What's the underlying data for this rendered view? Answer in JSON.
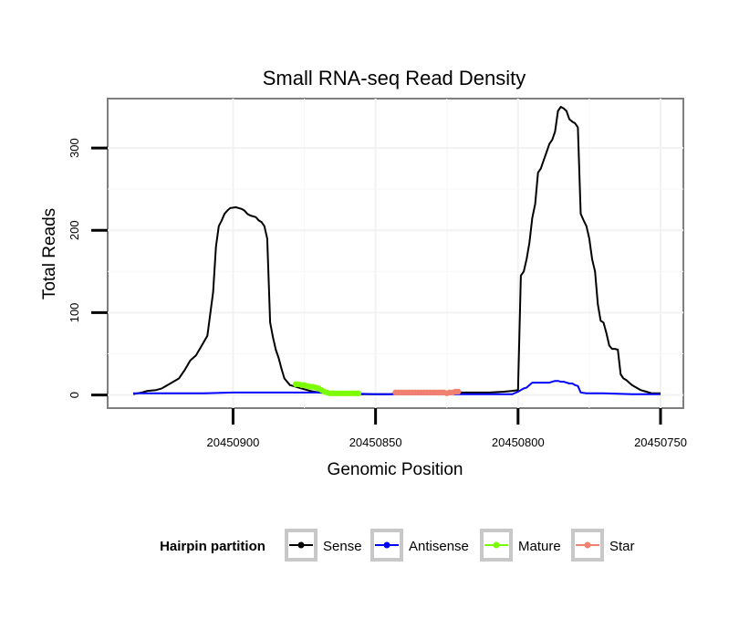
{
  "chart_data": {
    "type": "line",
    "title": "Small RNA-seq Read Density",
    "xlabel": "Genomic Position",
    "ylabel": "Total Reads",
    "x_reversed": true,
    "xlim": [
      20450944,
      20450742
    ],
    "ylim": [
      -16,
      360
    ],
    "x_ticks": [
      20450900,
      20450850,
      20450800,
      20450750
    ],
    "x_tick_labels": [
      "20450900",
      "20450850",
      "20450800",
      "20450750"
    ],
    "y_ticks": [
      0,
      100,
      200,
      300
    ],
    "y_tick_labels": [
      "0",
      "100",
      "200",
      "300"
    ],
    "grid": true,
    "legend": {
      "title": "Hairpin partition",
      "position": "bottom",
      "entries": [
        {
          "label": "Sense",
          "color": "#000000"
        },
        {
          "label": "Antisense",
          "color": "#0000ff"
        },
        {
          "label": "Mature",
          "color": "#7cfc00"
        },
        {
          "label": "Star",
          "color": "#f08070"
        }
      ]
    },
    "series": [
      {
        "name": "Sense",
        "color": "#000000",
        "x": [
          20450935,
          20450932,
          20450930,
          20450927,
          20450925,
          20450922,
          20450919,
          20450917,
          20450915,
          20450913,
          20450911,
          20450909,
          20450907,
          20450906,
          20450905,
          20450904,
          20450903,
          20450902,
          20450901,
          20450899,
          20450897,
          20450896,
          20450895,
          20450894,
          20450892,
          20450891,
          20450890,
          20450889,
          20450888,
          20450887,
          20450886,
          20450885,
          20450884,
          20450883,
          20450882,
          20450880,
          20450878,
          20450876,
          20450873,
          20450870,
          20450866,
          20450863,
          20450860,
          20450855,
          20450850,
          20450845,
          20450840,
          20450835,
          20450830,
          20450825,
          20450820,
          20450815,
          20450810,
          20450805,
          20450802,
          20450800,
          20450799,
          20450798,
          20450797,
          20450796,
          20450795,
          20450794,
          20450793,
          20450792,
          20450791,
          20450790,
          20450789,
          20450788,
          20450787,
          20450786,
          20450785,
          20450784,
          20450783,
          20450782,
          20450781,
          20450780,
          20450779,
          20450778,
          20450777,
          20450776,
          20450775,
          20450774,
          20450773,
          20450772,
          20450771,
          20450770,
          20450769,
          20450768,
          20450767,
          20450766,
          20450765,
          20450764,
          20450763,
          20450762,
          20450761,
          20450760,
          20450759,
          20450758,
          20450757,
          20450756,
          20450755,
          20450754,
          20450753,
          20450752,
          20450751,
          20450750
        ],
        "values": [
          1,
          3,
          5,
          6,
          8,
          14,
          20,
          30,
          42,
          48,
          60,
          72,
          125,
          180,
          205,
          212,
          220,
          224,
          227,
          228,
          226,
          224,
          220,
          218,
          216,
          212,
          210,
          205,
          190,
          88,
          70,
          55,
          45,
          32,
          20,
          12,
          10,
          8,
          5,
          3,
          2,
          1,
          1,
          1,
          1,
          1,
          2,
          2,
          2,
          3,
          3,
          3,
          3,
          4,
          5,
          6,
          145,
          150,
          165,
          185,
          215,
          232,
          270,
          275,
          285,
          295,
          305,
          310,
          320,
          345,
          350,
          348,
          345,
          335,
          332,
          330,
          325,
          220,
          212,
          205,
          190,
          165,
          150,
          110,
          90,
          88,
          75,
          60,
          56,
          56,
          55,
          25,
          20,
          18,
          15,
          12,
          10,
          8,
          6,
          5,
          4,
          3,
          2,
          2,
          2,
          2
        ]
      },
      {
        "name": "Antisense",
        "color": "#0000ff",
        "x": [
          20450935,
          20450930,
          20450920,
          20450910,
          20450900,
          20450890,
          20450880,
          20450870,
          20450860,
          20450850,
          20450840,
          20450830,
          20450820,
          20450810,
          20450805,
          20450802,
          20450800,
          20450799,
          20450798,
          20450797,
          20450796,
          20450795,
          20450794,
          20450791,
          20450789,
          20450788,
          20450787,
          20450786,
          20450785,
          20450784,
          20450782,
          20450781,
          20450780,
          20450779,
          20450778,
          20450776,
          20450770,
          20450760,
          20450750
        ],
        "values": [
          2,
          2,
          2,
          2,
          3,
          3,
          3,
          3,
          2,
          1,
          1,
          1,
          1,
          1,
          1,
          1,
          4,
          6,
          8,
          9,
          12,
          15,
          15,
          15,
          15,
          16,
          17,
          17,
          16,
          16,
          14,
          14,
          12,
          11,
          3,
          2,
          2,
          1,
          1
        ]
      },
      {
        "name": "Mature",
        "color": "#7cfc00",
        "x": [
          20450878,
          20450877,
          20450876,
          20450875,
          20450874,
          20450873,
          20450872,
          20450871,
          20450870,
          20450869,
          20450868,
          20450867,
          20450866,
          20450865,
          20450864,
          20450863,
          20450862,
          20450861,
          20450860,
          20450859,
          20450858,
          20450857,
          20450856
        ],
        "values": [
          13,
          13,
          12,
          12,
          11,
          10,
          10,
          9,
          8,
          6,
          4,
          3,
          2,
          2,
          2,
          2,
          2,
          2,
          2,
          2,
          2,
          2,
          2
        ]
      },
      {
        "name": "Star",
        "color": "#f08070",
        "x": [
          20450843,
          20450842,
          20450841,
          20450840,
          20450839,
          20450838,
          20450837,
          20450836,
          20450835,
          20450834,
          20450833,
          20450832,
          20450831,
          20450830,
          20450829,
          20450828,
          20450827,
          20450826,
          20450825,
          20450824,
          20450823,
          20450822,
          20450821
        ],
        "values": [
          3,
          3,
          3,
          3,
          3,
          3,
          3,
          3,
          3,
          3,
          3,
          3,
          3,
          3,
          3,
          3,
          3,
          3,
          2,
          3,
          3,
          4,
          4
        ]
      }
    ]
  }
}
